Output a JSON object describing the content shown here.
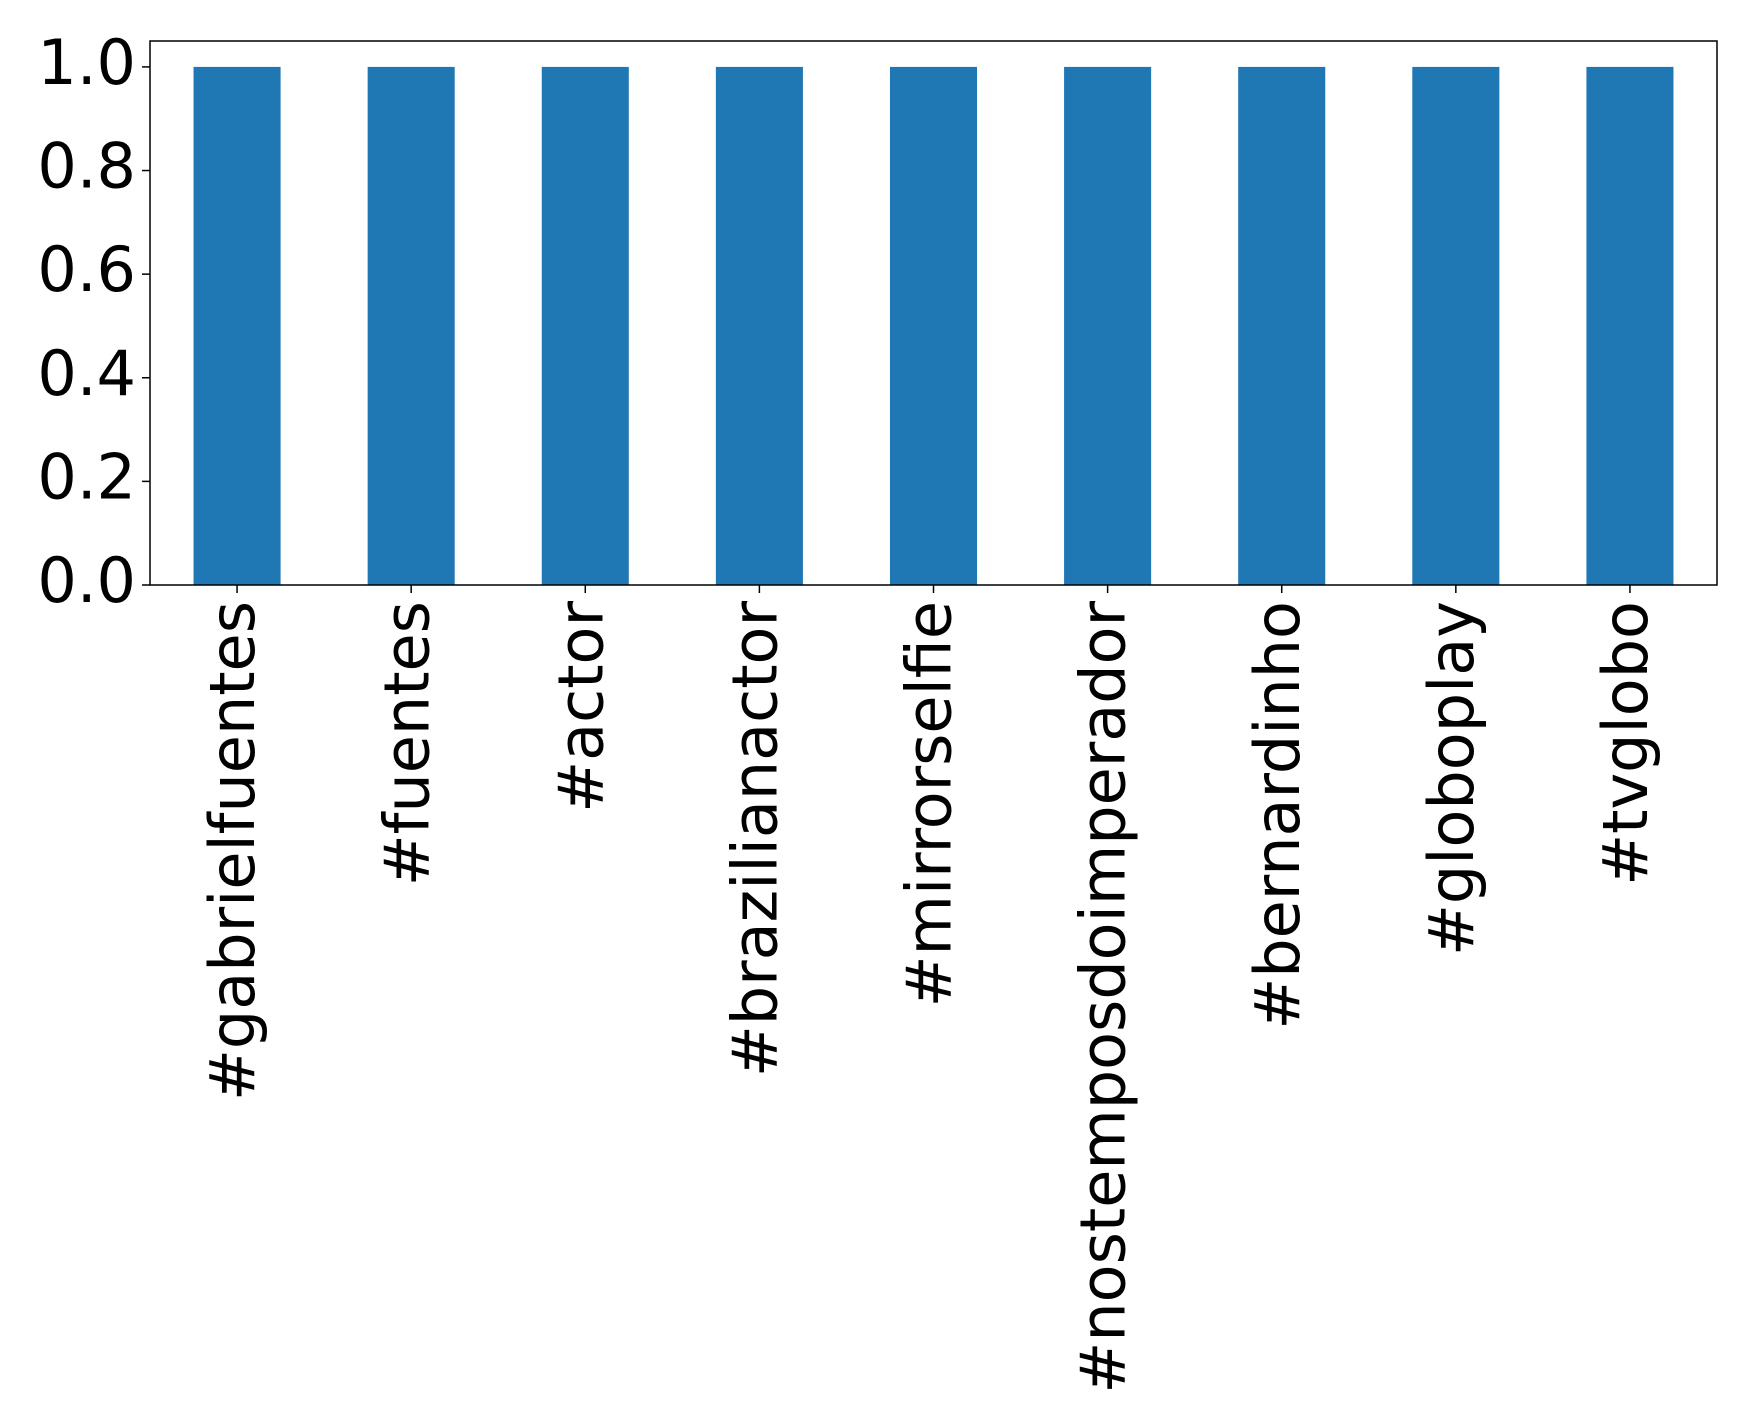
{
  "chart_data": {
    "type": "bar",
    "categories": [
      "#gabrielfuentes",
      "#fuentes",
      "#actor",
      "#brazilianactor",
      "#mirrorselfie",
      "#nostemposdoimperador",
      "#bernardinho",
      "#globoplay",
      "#tvglobo"
    ],
    "values": [
      1,
      1,
      1,
      1,
      1,
      1,
      1,
      1,
      1
    ],
    "color": "#1f77b4",
    "ylim": [
      0,
      1.05
    ],
    "yticks": [
      {
        "value": 0,
        "label": "0.0"
      },
      0.2,
      0.4,
      0.6,
      0.8,
      {
        "value": 1,
        "label": "1.0"
      }
    ],
    "grid": false
  }
}
